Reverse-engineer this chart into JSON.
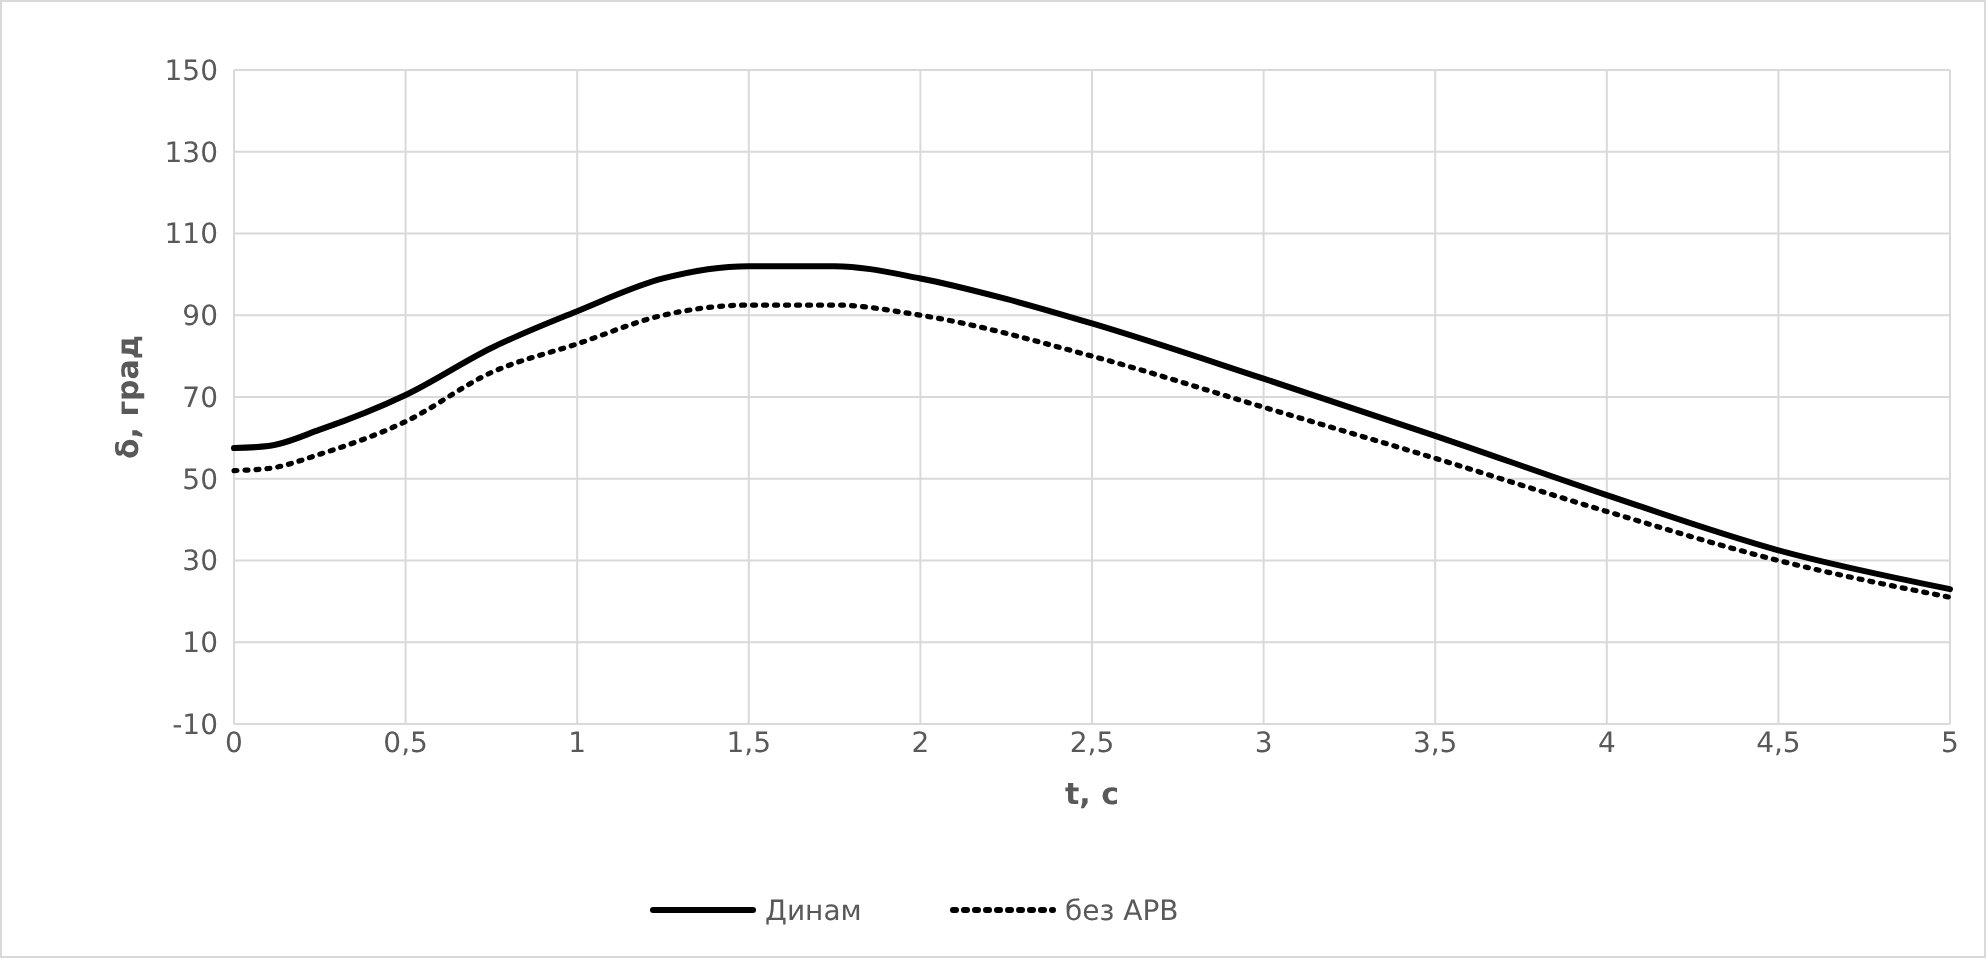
{
  "chart_data": {
    "type": "line",
    "xlabel": "t, с",
    "ylabel": "δ, град",
    "xlim": [
      0,
      5
    ],
    "xticks": [
      0,
      {
        "value": 0.5,
        "label": "0,5"
      },
      1,
      {
        "value": 1.5,
        "label": "1,5"
      },
      2,
      {
        "value": 2.5,
        "label": "2,5"
      },
      3,
      {
        "value": 3.5,
        "label": "3,5"
      },
      4,
      {
        "value": 4.5,
        "label": "4,5"
      },
      5
    ],
    "ylim": [
      -10,
      150
    ],
    "yticks": [
      -10,
      10,
      30,
      50,
      70,
      90,
      110,
      130,
      150
    ],
    "grid": true,
    "legend": "bottom",
    "marker": "none",
    "series": [
      {
        "name": "Динам",
        "color": "#000000",
        "line_style": "solid",
        "x": [
          0,
          0.1,
          0.25,
          0.5,
          0.75,
          1,
          1.25,
          1.5,
          1.75,
          2,
          2.25,
          2.5,
          3,
          3.5,
          4,
          4.5,
          5
        ],
        "values": [
          57.5,
          58,
          62,
          70.5,
          82,
          91,
          99,
          102,
          102,
          99,
          94,
          88,
          74.5,
          60.5,
          46,
          32.5,
          23
        ]
      },
      {
        "name": "без АРВ",
        "color": "#000000",
        "line_style": "dotted",
        "x": [
          0,
          0.1,
          0.25,
          0.5,
          0.75,
          1,
          1.25,
          1.5,
          1.75,
          2,
          2.5,
          3,
          3.5,
          4,
          4.5,
          5
        ],
        "values": [
          52,
          52.5,
          56,
          64,
          76,
          83,
          90,
          92.5,
          92.5,
          90,
          80,
          67.5,
          55,
          42,
          30,
          21
        ]
      }
    ]
  }
}
